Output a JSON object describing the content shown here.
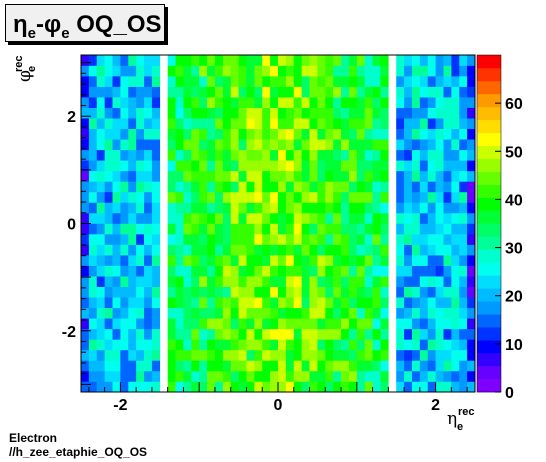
{
  "chart_data": {
    "type": "heatmap",
    "title": "η_e-φ_e OQ_OS",
    "title_parts": {
      "eta": "η",
      "sub_e": "e",
      "dash": "-",
      "phi": "φ",
      "sub_e2": "e",
      "rest": " OQ_OS"
    },
    "xlabel": {
      "symbol": "η",
      "sup": "rec",
      "sub": "e"
    },
    "ylabel": {
      "symbol": "φ",
      "sup": "rec",
      "sub": "e"
    },
    "xlim": [
      -2.5,
      2.5
    ],
    "ylim": [
      -3.14159,
      3.14159
    ],
    "x_ticks": [
      -2,
      0,
      2
    ],
    "x_tick_labels": [
      "-2",
      "0",
      "2"
    ],
    "y_ticks": [
      -2,
      0,
      2
    ],
    "y_tick_labels": [
      "-2",
      "0",
      "2"
    ],
    "z_range": [
      0,
      70
    ],
    "z_ticks": [
      0,
      10,
      20,
      30,
      40,
      50,
      60
    ],
    "z_tick_labels": [
      "0",
      "10",
      "20",
      "30",
      "40",
      "50",
      "60"
    ],
    "n_bins_x": 50,
    "n_bins_y": 32,
    "empty_eta_gaps": [
      [
        -1.5,
        -1.4
      ],
      [
        1.4,
        1.5
      ]
    ],
    "typical_counts": {
      "edge_eta": 12,
      "endcap": 22,
      "barrel_outer": 33,
      "barrel_center": 46
    },
    "colors": [
      "#7f00ff",
      "#6600ff",
      "#3300ff",
      "#0000ff",
      "#0033ff",
      "#0066ff",
      "#0099ff",
      "#00bbff",
      "#00ddff",
      "#00ffee",
      "#00ffcc",
      "#00ff99",
      "#00ff66",
      "#00ff33",
      "#00ff00",
      "#33ff00",
      "#66ff00",
      "#99ff00",
      "#ccff00",
      "#ffff00",
      "#ffdd00",
      "#ffbb00",
      "#ff9900",
      "#ff6600",
      "#ff3300",
      "#ff0000"
    ]
  },
  "footer": {
    "line1": "Electron",
    "line2": "//h_zee_etaphie_OQ_OS"
  }
}
